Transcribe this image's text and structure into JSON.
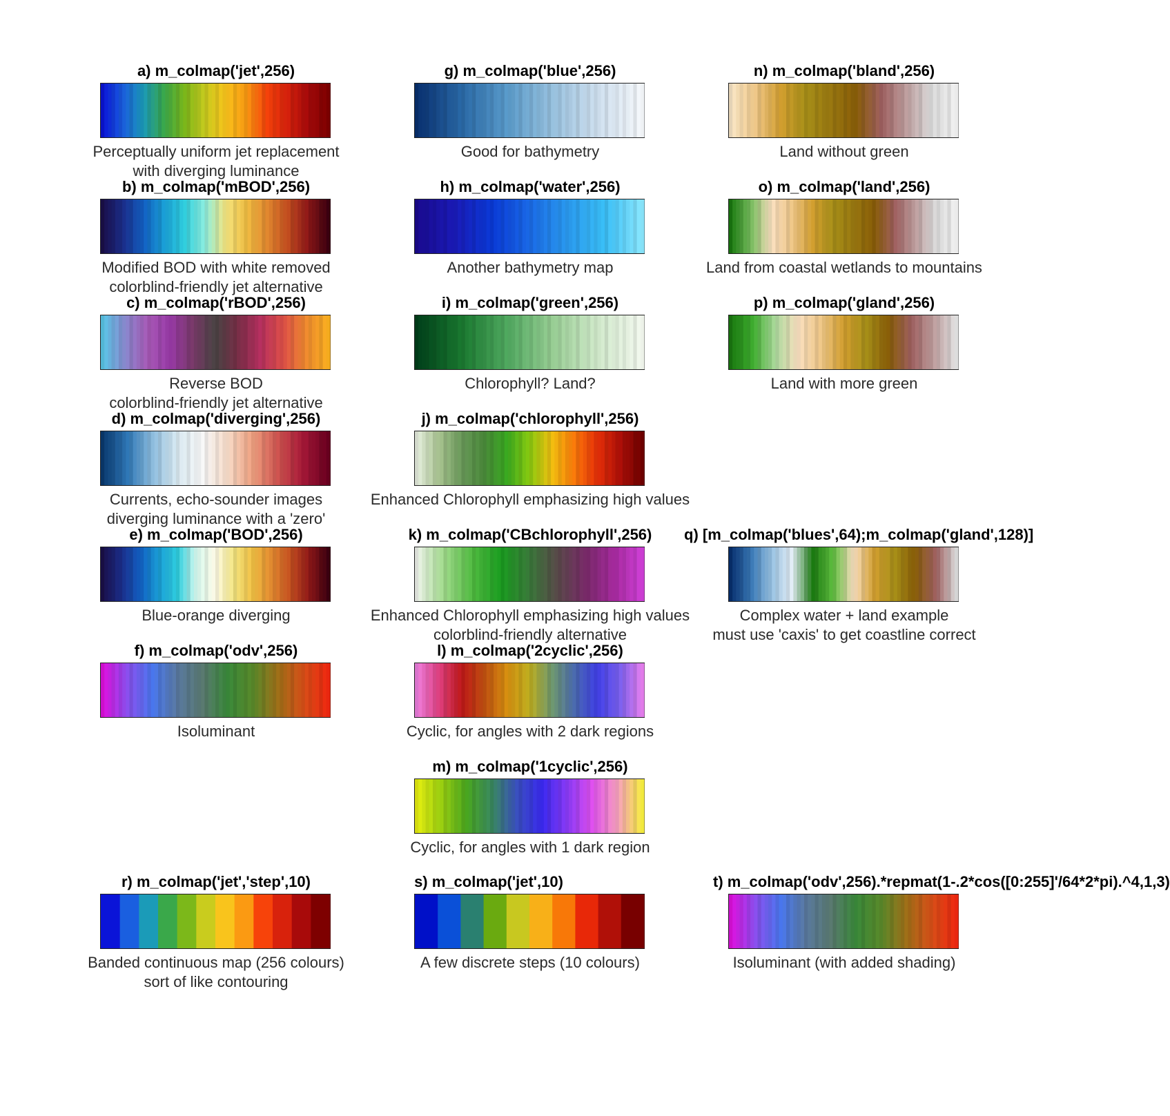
{
  "panels": [
    {
      "id": "a",
      "title": "a) m_colmap('jet',256)",
      "caption": [
        "Perceptually uniform jet replacement",
        "with diverging luminance"
      ],
      "stops": [
        "#0a14d8",
        "#1a5fe0",
        "#1b9bb8",
        "#3aa84a",
        "#7cb81a",
        "#c9cc1e",
        "#f9c41c",
        "#fb9a12",
        "#f7430a",
        "#d8220c",
        "#a80a0a",
        "#7e0000"
      ],
      "banded": true
    },
    {
      "id": "b",
      "title": "b) m_colmap('mBOD',256)",
      "caption": [
        "Modified BOD with white removed",
        "colorblind-friendly jet alternative"
      ],
      "stops": [
        "#1a0f4a",
        "#1b2e8c",
        "#1260c4",
        "#1aa0d8",
        "#30d0e0",
        "#8ff0e0",
        "#f5e680",
        "#f2c043",
        "#e48a30",
        "#c65020",
        "#901818",
        "#3c0010"
      ],
      "banded": true
    },
    {
      "id": "c",
      "title": "c) m_colmap('rBOD',256)",
      "caption": [
        "Reverse BOD",
        "colorblind-friendly jet alternative"
      ],
      "stops": [
        "#5ac8ea",
        "#8a8ad0",
        "#a85ab8",
        "#9a3aa8",
        "#7a3a6a",
        "#4a4444",
        "#7a2e48",
        "#b83060",
        "#e05048",
        "#f08a30",
        "#fbb020"
      ],
      "banded": true
    },
    {
      "id": "d",
      "title": "d) m_colmap('diverging',256)",
      "caption": [
        "Currents, echo-sounder images",
        "diverging luminance with a 'zero'"
      ],
      "stops": [
        "#0a3a70",
        "#2f78b8",
        "#8fbfe0",
        "#dcecf4",
        "#f8f8f8",
        "#f8dcc8",
        "#f0a080",
        "#d05450",
        "#a81838",
        "#6a0020"
      ],
      "banded": true
    },
    {
      "id": "e",
      "title": "e) m_colmap('BOD',256)",
      "caption": [
        "Blue-orange diverging"
      ],
      "stops": [
        "#1a0f4a",
        "#1b2e8c",
        "#1260c4",
        "#1aa0d8",
        "#30d0e0",
        "#d8fbf0",
        "#fffce8",
        "#f5e680",
        "#f2c043",
        "#e48a30",
        "#c65020",
        "#901818",
        "#3c0010"
      ],
      "banded": true
    },
    {
      "id": "f",
      "title": "f) m_colmap('odv',256)",
      "caption": [
        "Isoluminant"
      ],
      "stops": [
        "#e010e0",
        "#8a50f0",
        "#4a78f0",
        "#5a7aa0",
        "#5a7a70",
        "#3a8a3a",
        "#5a8a2a",
        "#a07018",
        "#d85018",
        "#f02810"
      ],
      "banded": true
    },
    {
      "id": "g",
      "title": "g) m_colmap('blue',256)",
      "caption": [
        "Good for bathymetry"
      ],
      "stops": [
        "#083070",
        "#2a6aa8",
        "#5a9ccc",
        "#98c2e0",
        "#cfe0f0",
        "#f6f9fc"
      ],
      "banded": true
    },
    {
      "id": "h",
      "title": "h) m_colmap('water',256)",
      "caption": [
        "Another bathymetry map"
      ],
      "stops": [
        "#1a0a90",
        "#1a1ab8",
        "#0a3ad8",
        "#1a6ae8",
        "#2a9af0",
        "#3ac0f8",
        "#8ae8ff"
      ],
      "banded": true
    },
    {
      "id": "i",
      "title": "i) m_colmap('green',256)",
      "caption": [
        "Chlorophyll? Land?"
      ],
      "stops": [
        "#00401a",
        "#1a7a30",
        "#50aa60",
        "#98cf94",
        "#d2ebcc",
        "#f4f9f0"
      ],
      "banded": true
    },
    {
      "id": "j",
      "title": "j) m_colmap('chlorophyll',256)",
      "caption": [
        "Enhanced Chlorophyll emphasizing high values"
      ],
      "stops": [
        "#e8f0e0",
        "#a8c490",
        "#6a9a5a",
        "#4a8a3a",
        "#3aaa20",
        "#8acc10",
        "#f4c010",
        "#fb7a0a",
        "#e83008",
        "#b01008",
        "#700000"
      ],
      "banded": true
    },
    {
      "id": "k",
      "title": "k) m_colmap('CBchlorophyll',256)",
      "caption": [
        "Enhanced Chlorophyll emphasizing high values",
        "colorblind-friendly alternative"
      ],
      "stops": [
        "#f0f4ec",
        "#a0dc8a",
        "#50bc40",
        "#1a9e20",
        "#3a7a3a",
        "#5a4a4a",
        "#7a2a6a",
        "#a82aa0",
        "#d040d8"
      ],
      "banded": true
    },
    {
      "id": "l",
      "title": "l) m_colmap('2cyclic',256)",
      "caption": [
        "Cyclic, for  angles with 2 dark regions"
      ],
      "stops": [
        "#f080e0",
        "#e04080",
        "#c01818",
        "#c05010",
        "#d89010",
        "#c0b020",
        "#709a70",
        "#4a6ab0",
        "#4040e8",
        "#7a60f0",
        "#e880f0"
      ],
      "banded": true
    },
    {
      "id": "m",
      "title": "m) m_colmap('1cyclic',256)",
      "caption": [
        "Cyclic, for  angles with 1 dark region"
      ],
      "stops": [
        "#e8f010",
        "#9ad010",
        "#4aa820",
        "#3a8a60",
        "#3a50c0",
        "#3a2af0",
        "#8a3af8",
        "#e050f0",
        "#f8a0c0",
        "#f8f040"
      ],
      "banded": true
    },
    {
      "id": "n",
      "title": "n) m_colmap('bland',256)",
      "caption": [
        "Land without green"
      ],
      "stops": [
        "#fbe8c8",
        "#f0c888",
        "#d4a030",
        "#a89018",
        "#9a7810",
        "#8a5e08",
        "#a06060",
        "#c0a0a0",
        "#dcdcdc",
        "#f2f2f2"
      ],
      "banded": true
    },
    {
      "id": "o",
      "title": "o) m_colmap('land',256)",
      "caption": [
        "Land from coastal wetlands to mountains"
      ],
      "stops": [
        "#1a7a10",
        "#7abf60",
        "#fbe0c0",
        "#f0c888",
        "#d4a030",
        "#a89018",
        "#9a7810",
        "#8a5e08",
        "#a06060",
        "#c0a0a0",
        "#dcdcdc",
        "#f2f2f2"
      ],
      "banded": true
    },
    {
      "id": "p",
      "title": "p) m_colmap('gland',256)",
      "caption": [
        "Land with more green"
      ],
      "stops": [
        "#1a7a10",
        "#40b030",
        "#b0dca0",
        "#fbe0c0",
        "#f0c888",
        "#d4a030",
        "#a89018",
        "#8a5e08",
        "#a06060",
        "#c0a0a0",
        "#e4e4e4"
      ],
      "banded": true
    },
    {
      "id": "q",
      "title": "q) [m_colmap('blues',64);m_colmap('gland',128)]",
      "caption": [
        "Complex water + land example",
        "must use 'caxis' to get coastline correct"
      ],
      "stops": [
        "#083070",
        "#3a7ab8",
        "#9ac4e4",
        "#e6f0f8",
        "#1a7a10",
        "#60c040",
        "#fbe0c0",
        "#d4a030",
        "#a89018",
        "#8a5e08",
        "#a06060",
        "#dcdcdc"
      ],
      "banded": true
    },
    {
      "id": "r",
      "title": "r) m_colmap('jet','step',10)",
      "caption": [
        "Banded continuous map (256 colours)",
        "sort of like contouring"
      ],
      "stops": [
        "#0a14d8",
        "#1a5fe0",
        "#1b9bb8",
        "#3aa84a",
        "#7cb81a",
        "#c9cc1e",
        "#f9c41c",
        "#fb9a12",
        "#f7430a",
        "#d8220c",
        "#a80a0a",
        "#7e0000"
      ],
      "banded": false
    },
    {
      "id": "s",
      "title": "s) m_colmap('jet',10)",
      "caption": [
        "A few discrete steps (10 colours)"
      ],
      "stops": [
        "#0010c8",
        "#0a50d8",
        "#2a8070",
        "#6aaa10",
        "#c8c820",
        "#f8b018",
        "#f87808",
        "#e82808",
        "#b01008",
        "#780000"
      ],
      "banded": false
    },
    {
      "id": "t",
      "title": "t) m_colmap('odv',256).*repmat(1-.2*cos([0:255]'/64*2*pi).^4,1,3)",
      "caption": [
        "Isoluminant (with added shading)"
      ],
      "stops": [
        "#e010e0",
        "#8a50f0",
        "#4a78f0",
        "#5a7aa0",
        "#5a7a70",
        "#3a8a3a",
        "#5a8a2a",
        "#a07018",
        "#d85018",
        "#f02810"
      ],
      "banded": true
    }
  ]
}
